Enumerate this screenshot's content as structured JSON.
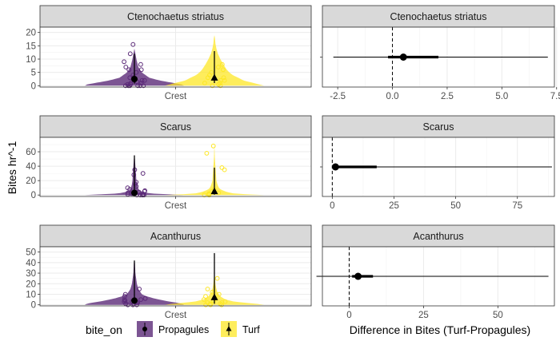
{
  "figure": {
    "ylabel": "Bites hr^-1",
    "xlabel_right": "Difference in Bites (Turf-Propagules)",
    "legend": {
      "title": "bite_on",
      "items": [
        {
          "label": "Propagules",
          "color": "#5b2a78"
        },
        {
          "label": "Turf",
          "color": "#fde725"
        }
      ]
    },
    "colors": {
      "propagules": "#5b2a78",
      "turf": "#fde725",
      "strip": "#d9d9d9",
      "grid": "#ebebeb"
    }
  },
  "chart_data": [
    {
      "type": "violin",
      "title": "Ctenochaetus striatus",
      "categories": [
        "Crest"
      ],
      "ylim": [
        -0.5,
        22
      ],
      "yticks": [
        0,
        5,
        10,
        15,
        20
      ],
      "series": [
        {
          "name": "Propagules",
          "mean": 2.5,
          "ci": [
            0.8,
            12
          ],
          "density": [
            [
              0,
              1.0
            ],
            [
              0.5,
              0.95
            ],
            [
              1,
              0.8
            ],
            [
              2,
              0.5
            ],
            [
              3,
              0.3
            ],
            [
              5,
              0.15
            ],
            [
              7,
              0.08
            ],
            [
              10,
              0.04
            ],
            [
              12,
              0.02
            ],
            [
              14,
              0
            ]
          ],
          "points": [
            0,
            0,
            0,
            0,
            0,
            0,
            0.5,
            0.5,
            1,
            1,
            1.5,
            2,
            2,
            2.5,
            3,
            3,
            4,
            5,
            6,
            6,
            7,
            8,
            9,
            12,
            15.5
          ]
        },
        {
          "name": "Turf",
          "mean": 3,
          "ci": [
            1,
            13
          ],
          "density": [
            [
              0,
              1.0
            ],
            [
              0.5,
              0.9
            ],
            [
              1,
              0.8
            ],
            [
              2,
              0.58
            ],
            [
              3,
              0.48
            ],
            [
              4,
              0.37
            ],
            [
              5,
              0.3
            ],
            [
              6,
              0.25
            ],
            [
              8,
              0.18
            ],
            [
              10,
              0.12
            ],
            [
              12,
              0.07
            ],
            [
              14,
              0.04
            ],
            [
              16,
              0.02
            ],
            [
              18,
              0.01
            ],
            [
              19,
              0
            ]
          ],
          "points": [
            0,
            0,
            0.5,
            1,
            1,
            2,
            2,
            3,
            3,
            4,
            5,
            6,
            7,
            8
          ]
        }
      ]
    },
    {
      "type": "violin",
      "title": "Scarus",
      "categories": [
        "Crest"
      ],
      "ylim": [
        -2,
        80
      ],
      "yticks": [
        0,
        20,
        40,
        60
      ],
      "series": [
        {
          "name": "Propagules",
          "mean": 3,
          "ci": [
            0.5,
            55
          ],
          "density": [
            [
              0,
              1.0
            ],
            [
              1,
              0.7
            ],
            [
              2,
              0.35
            ],
            [
              4,
              0.18
            ],
            [
              6,
              0.11
            ],
            [
              10,
              0.07
            ],
            [
              15,
              0.05
            ],
            [
              20,
              0.04
            ],
            [
              30,
              0.03
            ],
            [
              40,
              0.02
            ],
            [
              50,
              0.01
            ],
            [
              56,
              0
            ]
          ],
          "points": [
            0,
            0,
            0,
            0,
            0,
            1,
            1,
            2,
            2,
            3,
            4,
            5,
            6,
            8,
            10,
            12,
            15,
            18,
            28,
            30,
            35
          ]
        },
        {
          "name": "Turf",
          "mean": 5,
          "ci": [
            0.5,
            38
          ],
          "density": [
            [
              0,
              1.0
            ],
            [
              1,
              0.65
            ],
            [
              2,
              0.4
            ],
            [
              4,
              0.26
            ],
            [
              6,
              0.18
            ],
            [
              8,
              0.12
            ],
            [
              10,
              0.09
            ],
            [
              15,
              0.06
            ],
            [
              20,
              0.04
            ],
            [
              30,
              0.03
            ],
            [
              40,
              0.02
            ],
            [
              50,
              0.01
            ],
            [
              60,
              0.005
            ],
            [
              70,
              0
            ]
          ],
          "points": [
            0,
            0,
            1,
            2,
            3,
            5,
            8,
            35,
            38,
            58,
            68
          ]
        }
      ]
    },
    {
      "type": "violin",
      "title": "Acanthurus",
      "categories": [
        "Crest"
      ],
      "ylim": [
        -1,
        55
      ],
      "yticks": [
        0,
        10,
        20,
        30,
        40,
        50
      ],
      "series": [
        {
          "name": "Propagules",
          "mean": 4,
          "ci": [
            1,
            42
          ],
          "density": [
            [
              0,
              1.0
            ],
            [
              1,
              0.96
            ],
            [
              2,
              0.85
            ],
            [
              3,
              0.72
            ],
            [
              4,
              0.6
            ],
            [
              6,
              0.4
            ],
            [
              8,
              0.25
            ],
            [
              10,
              0.15
            ],
            [
              15,
              0.08
            ],
            [
              20,
              0.05
            ],
            [
              25,
              0.035
            ],
            [
              30,
              0.02
            ],
            [
              35,
              0.015
            ],
            [
              40,
              0.01
            ],
            [
              42,
              0
            ]
          ],
          "points": [
            0,
            0,
            0,
            1,
            1,
            2,
            2,
            3,
            3,
            4,
            5,
            5,
            6,
            8,
            10,
            15
          ]
        },
        {
          "name": "Turf",
          "mean": 7,
          "ci": [
            1,
            49
          ],
          "density": [
            [
              0,
              1.0
            ],
            [
              1,
              0.85
            ],
            [
              2,
              0.6
            ],
            [
              3,
              0.4
            ],
            [
              5,
              0.22
            ],
            [
              8,
              0.12
            ],
            [
              12,
              0.06
            ],
            [
              16,
              0.035
            ],
            [
              20,
              0.02
            ],
            [
              25,
              0.01
            ],
            [
              30,
              0.006
            ],
            [
              40,
              0.003
            ],
            [
              49,
              0
            ]
          ],
          "points": [
            0,
            0,
            0,
            1,
            1,
            2,
            2,
            3,
            4,
            5,
            6,
            8,
            10,
            12,
            15,
            25
          ]
        }
      ]
    },
    {
      "type": "interval",
      "title": "Ctenochaetus striatus",
      "xlim": [
        -3.2,
        7.4
      ],
      "xticks": [
        -2.5,
        0,
        2.5,
        5,
        7.5
      ],
      "xtick_labels": [
        "-2.5",
        "0.0",
        "2.5",
        "5.0",
        "7.5"
      ],
      "zero_line": 0,
      "estimate": 0.5,
      "inner": [
        -0.2,
        2.1
      ],
      "outer": [
        -2.7,
        7.1
      ]
    },
    {
      "type": "interval",
      "title": "Scarus",
      "xlim": [
        -4,
        90
      ],
      "xticks": [
        0,
        25,
        50,
        75
      ],
      "xtick_labels": [
        "0",
        "25",
        "50",
        "75"
      ],
      "zero_line": 0,
      "estimate": 1.3,
      "inner": [
        0,
        18
      ],
      "outer": [
        0,
        89
      ]
    },
    {
      "type": "interval",
      "title": "Acanthurus",
      "xlim": [
        -9,
        69
      ],
      "xticks": [
        0,
        25,
        50
      ],
      "xtick_labels": [
        "0",
        "25",
        "50"
      ],
      "zero_line": 0,
      "estimate": 3,
      "inner": [
        1,
        8
      ],
      "outer": [
        -11,
        67
      ]
    }
  ]
}
